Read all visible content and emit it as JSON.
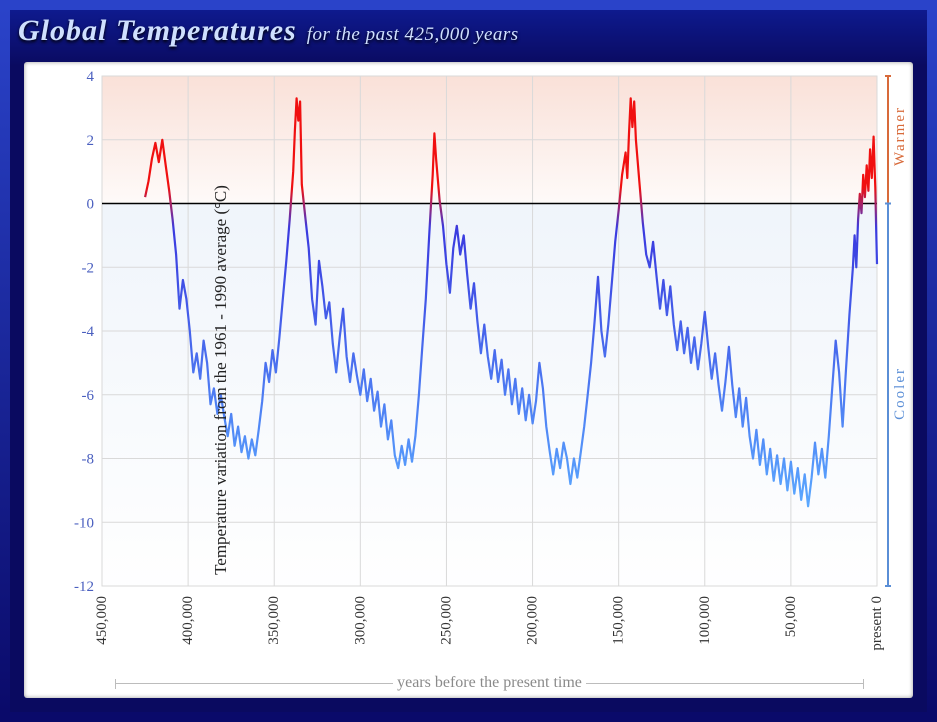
{
  "title_main": "Global Temperatures",
  "title_sub": "for the past 425,000 years",
  "chart": {
    "type": "line",
    "xlim": [
      450000,
      0
    ],
    "ylim": [
      -12,
      4
    ],
    "ytick_step": 2,
    "yticks": [
      4,
      2,
      0,
      -2,
      -4,
      -6,
      -8,
      -10,
      -12
    ],
    "xticks": [
      450000,
      400000,
      350000,
      300000,
      250000,
      200000,
      150000,
      100000,
      50000,
      0
    ],
    "xtick_labels": [
      "450,000",
      "400,000",
      "350,000",
      "300,000",
      "250,000",
      "200,000",
      "150,000",
      "100,000",
      "50,000",
      "present 0"
    ],
    "ylabel": "Temperature variation from the 1961 - 1990 average (°C)",
    "xlabel": "years before the present time",
    "background_color": "#ffffff",
    "grid_color": "#d9d9d9",
    "zero_line_color": "#000000",
    "warm_band_color": "#f9dfd6",
    "cool_band_color": "#e3ecf7",
    "tick_font_color": "#4a5fbf",
    "tick_font_size": 15,
    "color_top": "#f01010",
    "color_bottom": "#5aa8ff",
    "line_width": 2.2,
    "warmer_label": "Warmer",
    "cooler_label": "Cooler",
    "warmer_color": "#d86a3a",
    "cooler_color": "#5a8ed6",
    "data": [
      [
        425000,
        0.2
      ],
      [
        423000,
        0.7
      ],
      [
        421000,
        1.4
      ],
      [
        419000,
        1.9
      ],
      [
        417000,
        1.3
      ],
      [
        415000,
        2.0
      ],
      [
        413000,
        1.2
      ],
      [
        411000,
        0.4
      ],
      [
        409000,
        -0.5
      ],
      [
        407000,
        -1.6
      ],
      [
        405000,
        -3.3
      ],
      [
        403000,
        -2.4
      ],
      [
        401000,
        -3.0
      ],
      [
        399000,
        -4.0
      ],
      [
        397000,
        -5.3
      ],
      [
        395000,
        -4.7
      ],
      [
        393000,
        -5.5
      ],
      [
        391000,
        -4.3
      ],
      [
        389000,
        -5.0
      ],
      [
        387000,
        -6.3
      ],
      [
        385000,
        -5.8
      ],
      [
        383000,
        -6.6
      ],
      [
        381000,
        -6.0
      ],
      [
        379000,
        -6.7
      ],
      [
        377000,
        -7.3
      ],
      [
        375000,
        -6.6
      ],
      [
        373000,
        -7.6
      ],
      [
        371000,
        -7.0
      ],
      [
        369000,
        -7.8
      ],
      [
        367000,
        -7.3
      ],
      [
        365000,
        -8.0
      ],
      [
        363000,
        -7.4
      ],
      [
        361000,
        -7.9
      ],
      [
        359000,
        -7.1
      ],
      [
        357000,
        -6.2
      ],
      [
        355000,
        -5.0
      ],
      [
        353000,
        -5.6
      ],
      [
        351000,
        -4.6
      ],
      [
        349000,
        -5.3
      ],
      [
        347000,
        -4.2
      ],
      [
        345000,
        -3.0
      ],
      [
        343000,
        -1.8
      ],
      [
        341000,
        -0.5
      ],
      [
        339000,
        1.0
      ],
      [
        338000,
        2.3
      ],
      [
        337000,
        3.3
      ],
      [
        336000,
        2.6
      ],
      [
        335000,
        3.2
      ],
      [
        334000,
        0.6
      ],
      [
        332000,
        -0.4
      ],
      [
        330000,
        -1.4
      ],
      [
        328000,
        -3.0
      ],
      [
        326000,
        -3.8
      ],
      [
        324000,
        -1.8
      ],
      [
        322000,
        -2.6
      ],
      [
        320000,
        -3.6
      ],
      [
        318000,
        -3.1
      ],
      [
        316000,
        -4.4
      ],
      [
        314000,
        -5.3
      ],
      [
        312000,
        -4.2
      ],
      [
        310000,
        -3.3
      ],
      [
        308000,
        -4.8
      ],
      [
        306000,
        -5.6
      ],
      [
        304000,
        -4.7
      ],
      [
        302000,
        -5.4
      ],
      [
        300000,
        -6.0
      ],
      [
        298000,
        -5.2
      ],
      [
        296000,
        -6.2
      ],
      [
        294000,
        -5.5
      ],
      [
        292000,
        -6.5
      ],
      [
        290000,
        -5.9
      ],
      [
        288000,
        -7.0
      ],
      [
        286000,
        -6.3
      ],
      [
        284000,
        -7.4
      ],
      [
        282000,
        -6.8
      ],
      [
        280000,
        -7.9
      ],
      [
        278000,
        -8.3
      ],
      [
        276000,
        -7.6
      ],
      [
        274000,
        -8.2
      ],
      [
        272000,
        -7.4
      ],
      [
        270000,
        -8.1
      ],
      [
        268000,
        -7.3
      ],
      [
        266000,
        -6.0
      ],
      [
        264000,
        -4.5
      ],
      [
        262000,
        -3.0
      ],
      [
        260000,
        -1.0
      ],
      [
        258000,
        0.9
      ],
      [
        257000,
        2.2
      ],
      [
        256000,
        1.4
      ],
      [
        254000,
        0.1
      ],
      [
        252000,
        -0.7
      ],
      [
        250000,
        -1.9
      ],
      [
        248000,
        -2.8
      ],
      [
        246000,
        -1.4
      ],
      [
        244000,
        -0.7
      ],
      [
        242000,
        -1.6
      ],
      [
        240000,
        -1.0
      ],
      [
        238000,
        -2.2
      ],
      [
        236000,
        -3.3
      ],
      [
        234000,
        -2.5
      ],
      [
        232000,
        -3.7
      ],
      [
        230000,
        -4.7
      ],
      [
        228000,
        -3.8
      ],
      [
        226000,
        -4.8
      ],
      [
        224000,
        -5.5
      ],
      [
        222000,
        -4.6
      ],
      [
        220000,
        -5.6
      ],
      [
        218000,
        -4.9
      ],
      [
        216000,
        -6.0
      ],
      [
        214000,
        -5.2
      ],
      [
        212000,
        -6.3
      ],
      [
        210000,
        -5.5
      ],
      [
        208000,
        -6.6
      ],
      [
        206000,
        -5.8
      ],
      [
        204000,
        -6.8
      ],
      [
        202000,
        -6.0
      ],
      [
        200000,
        -6.9
      ],
      [
        198000,
        -6.2
      ],
      [
        196000,
        -5.0
      ],
      [
        194000,
        -5.8
      ],
      [
        192000,
        -7.0
      ],
      [
        190000,
        -7.8
      ],
      [
        188000,
        -8.5
      ],
      [
        186000,
        -7.7
      ],
      [
        184000,
        -8.3
      ],
      [
        182000,
        -7.5
      ],
      [
        180000,
        -8.0
      ],
      [
        178000,
        -8.8
      ],
      [
        176000,
        -8.0
      ],
      [
        174000,
        -8.6
      ],
      [
        172000,
        -7.8
      ],
      [
        170000,
        -7.0
      ],
      [
        168000,
        -6.0
      ],
      [
        166000,
        -5.0
      ],
      [
        164000,
        -3.7
      ],
      [
        162000,
        -2.3
      ],
      [
        160000,
        -4.0
      ],
      [
        158000,
        -4.8
      ],
      [
        156000,
        -3.8
      ],
      [
        154000,
        -2.5
      ],
      [
        152000,
        -1.2
      ],
      [
        150000,
        -0.2
      ],
      [
        148000,
        0.9
      ],
      [
        146000,
        1.6
      ],
      [
        145000,
        0.8
      ],
      [
        144000,
        2.2
      ],
      [
        143000,
        3.3
      ],
      [
        142000,
        2.4
      ],
      [
        141000,
        3.2
      ],
      [
        140000,
        2.0
      ],
      [
        138000,
        0.7
      ],
      [
        136000,
        -0.6
      ],
      [
        134000,
        -1.6
      ],
      [
        132000,
        -2.0
      ],
      [
        130000,
        -1.2
      ],
      [
        128000,
        -2.3
      ],
      [
        126000,
        -3.3
      ],
      [
        124000,
        -2.4
      ],
      [
        122000,
        -3.5
      ],
      [
        120000,
        -2.6
      ],
      [
        118000,
        -3.8
      ],
      [
        116000,
        -4.6
      ],
      [
        114000,
        -3.7
      ],
      [
        112000,
        -4.7
      ],
      [
        110000,
        -3.9
      ],
      [
        108000,
        -5.0
      ],
      [
        106000,
        -4.2
      ],
      [
        104000,
        -5.2
      ],
      [
        102000,
        -4.4
      ],
      [
        100000,
        -3.4
      ],
      [
        98000,
        -4.5
      ],
      [
        96000,
        -5.5
      ],
      [
        94000,
        -4.7
      ],
      [
        92000,
        -5.7
      ],
      [
        90000,
        -6.5
      ],
      [
        88000,
        -5.6
      ],
      [
        86000,
        -4.5
      ],
      [
        84000,
        -5.7
      ],
      [
        82000,
        -6.7
      ],
      [
        80000,
        -5.8
      ],
      [
        78000,
        -7.0
      ],
      [
        76000,
        -6.1
      ],
      [
        74000,
        -7.3
      ],
      [
        72000,
        -8.0
      ],
      [
        70000,
        -7.1
      ],
      [
        68000,
        -8.2
      ],
      [
        66000,
        -7.4
      ],
      [
        64000,
        -8.5
      ],
      [
        62000,
        -7.7
      ],
      [
        60000,
        -8.7
      ],
      [
        58000,
        -7.9
      ],
      [
        56000,
        -8.8
      ],
      [
        54000,
        -8.0
      ],
      [
        52000,
        -9.0
      ],
      [
        50000,
        -8.1
      ],
      [
        48000,
        -9.1
      ],
      [
        46000,
        -8.3
      ],
      [
        44000,
        -9.3
      ],
      [
        42000,
        -8.5
      ],
      [
        40000,
        -9.5
      ],
      [
        38000,
        -8.6
      ],
      [
        36000,
        -7.5
      ],
      [
        34000,
        -8.5
      ],
      [
        32000,
        -7.7
      ],
      [
        30000,
        -8.6
      ],
      [
        28000,
        -7.3
      ],
      [
        26000,
        -5.8
      ],
      [
        24000,
        -4.3
      ],
      [
        22000,
        -5.3
      ],
      [
        20000,
        -7.0
      ],
      [
        18000,
        -5.2
      ],
      [
        16000,
        -3.5
      ],
      [
        14000,
        -2.0
      ],
      [
        13000,
        -1.0
      ],
      [
        12000,
        -2.0
      ],
      [
        11000,
        -0.5
      ],
      [
        10000,
        0.3
      ],
      [
        9000,
        -0.3
      ],
      [
        8000,
        0.9
      ],
      [
        7000,
        0.2
      ],
      [
        6000,
        1.2
      ],
      [
        5000,
        0.4
      ],
      [
        4000,
        1.7
      ],
      [
        3000,
        0.8
      ],
      [
        2000,
        2.1
      ],
      [
        1500,
        1.3
      ],
      [
        1000,
        0.5
      ],
      [
        500,
        -0.7
      ],
      [
        0,
        -1.9
      ]
    ]
  }
}
